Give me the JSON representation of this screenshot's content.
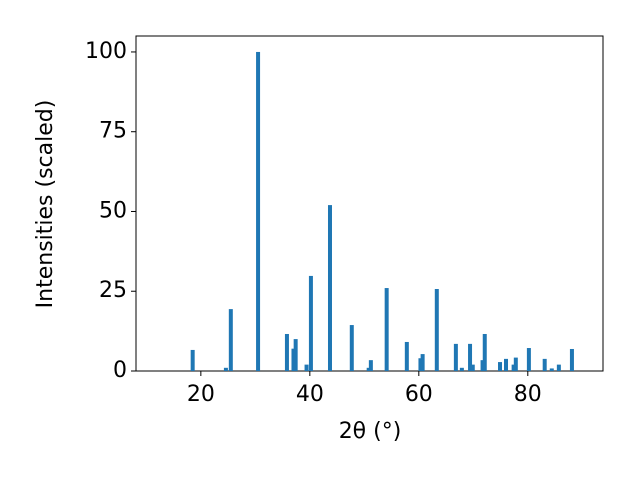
{
  "chart_data": {
    "type": "bar",
    "xlabel": "2θ (°)",
    "ylabel": "Intensities (scaled)",
    "x": [
      18.5,
      24.6,
      25.5,
      30.5,
      35.8,
      37.0,
      37.4,
      39.4,
      40.2,
      43.7,
      47.7,
      50.8,
      51.2,
      54.1,
      57.8,
      60.3,
      60.7,
      63.3,
      66.8,
      67.9,
      69.4,
      69.9,
      71.7,
      72.1,
      74.9,
      76.0,
      77.4,
      77.8,
      80.2,
      83.1,
      84.4,
      85.7,
      88.1
    ],
    "values": [
      6.6,
      1.0,
      19.4,
      100,
      11.6,
      7.0,
      10.0,
      2.0,
      29.8,
      52.0,
      14.4,
      1.0,
      3.4,
      26.0,
      9.1,
      4.0,
      5.3,
      25.7,
      8.5,
      1.0,
      8.5,
      2.0,
      3.4,
      11.6,
      2.8,
      3.8,
      2.0,
      4.2,
      7.2,
      3.8,
      0.8,
      2.0,
      6.9
    ],
    "color": "#1f77b4",
    "xlim": [
      8.1,
      93.8
    ],
    "ylim": [
      0,
      105
    ],
    "xticks": [
      20,
      40,
      60,
      80
    ],
    "yticks": [
      0,
      25,
      50,
      75,
      100
    ]
  }
}
